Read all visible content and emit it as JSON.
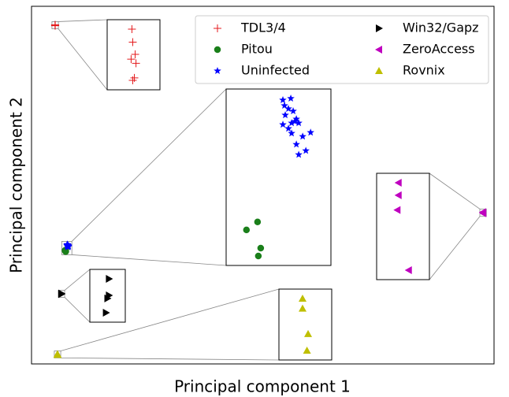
{
  "chart_data": {
    "type": "scatter",
    "x_label": "Principal component 1",
    "y_label": "Principal component 2",
    "xlim": [
      0,
      100
    ],
    "ylim": [
      0,
      100
    ],
    "legend": "upper right",
    "series": [
      {
        "name": "TDL3/4",
        "color": "#e41a1c",
        "marker": "plus",
        "x": [
          5.102,
          5.106,
          5.118,
          5.098,
          5.122,
          5.114,
          5.106
        ],
        "values": [
          94.834,
          94.77,
          94.71,
          94.686,
          94.666,
          94.594,
          94.582
        ]
      },
      {
        "name": "Pitou",
        "color": "#1a7f1a",
        "marker": "circle",
        "x": [
          7.23,
          7.37,
          7.41,
          7.38
        ],
        "values": [
          31.73,
          31.83,
          31.5,
          31.4
        ]
      },
      {
        "name": "Uninfected",
        "color": "#0000ff",
        "marker": "star",
        "x": [
          7.69,
          7.79,
          7.71,
          7.76,
          7.72,
          7.82,
          7.86,
          7.8,
          7.69,
          7.84,
          7.89,
          7.76,
          7.94,
          8.04,
          7.86,
          7.98,
          7.89,
          7.8
        ],
        "values": [
          33.37,
          33.39,
          33.3,
          33.26,
          33.18,
          33.23,
          33.13,
          33.08,
          33.06,
          33.1,
          33.08,
          33.01,
          32.91,
          32.96,
          32.81,
          32.73,
          32.68,
          32.95
        ]
      },
      {
        "name": "Win32/Gapz",
        "color": "#000000",
        "marker": "triangle-right",
        "x": [
          6.482,
          6.482,
          6.474,
          6.466
        ],
        "values": [
          19.688,
          19.6,
          19.584,
          19.508
        ]
      },
      {
        "name": "ZeroAccess",
        "color": "#bf00bf",
        "marker": "triangle-left",
        "x": [
          97.618,
          97.618,
          97.614,
          97.654
        ],
        "values": [
          42.438,
          42.394,
          42.342,
          42.13
        ]
      },
      {
        "name": "Rovnix",
        "color": "#bfbf00",
        "marker": "triangle-up",
        "x": [
          5.612,
          5.612,
          5.632,
          5.628
        ],
        "values": [
          2.756,
          2.72,
          2.628,
          2.568
        ]
      }
    ]
  }
}
